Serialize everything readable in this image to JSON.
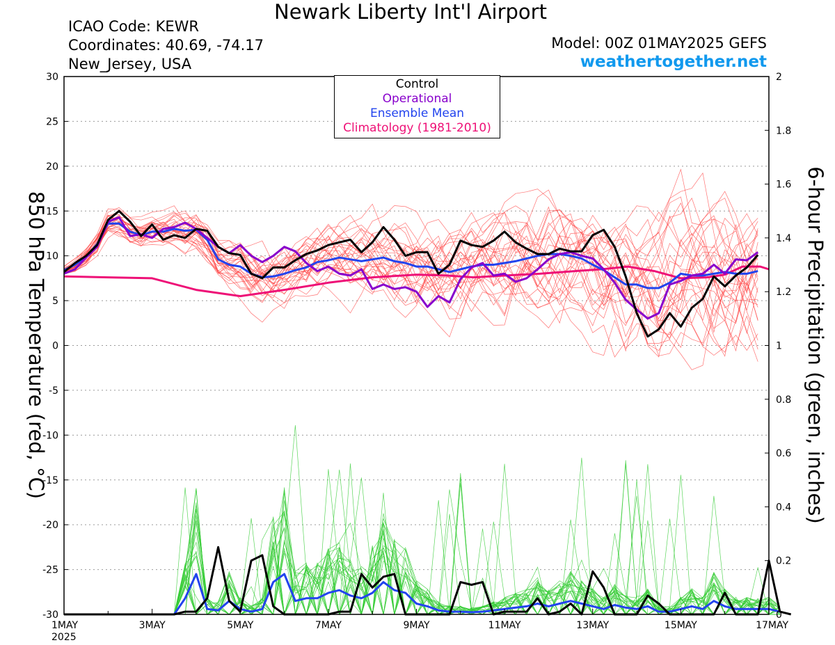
{
  "header": {
    "title": "Newark Liberty Int'l Airport",
    "icao": "ICAO Code: KEWR",
    "coordinates": "Coordinates: 40.69, -74.17",
    "location": "New_Jersey, USA",
    "model": "Model: 00Z 01MAY2025 GEFS",
    "site": "weathertogether.net"
  },
  "colors": {
    "control": "#000000",
    "operational": "#8800cc",
    "ensemble_mean": "#2244ee",
    "climatology": "#ee1177",
    "members_temperature": "#ff4444",
    "members_precipitation": "#33cc33",
    "site": "#1199ee"
  },
  "chart_data": {
    "type": "line",
    "xlabel": "",
    "ylabel": "850 hPa Temperature (red, °C)",
    "y2label": "6-hour Precipitation (green, inches)",
    "x_unit": "days after 1 May 2025 00Z (6-hourly)",
    "xlim": [
      0,
      16
    ],
    "ylim": [
      -30,
      30
    ],
    "y2lim": [
      0,
      2
    ],
    "x_ticks": [
      "1MAY",
      "3MAY",
      "5MAY",
      "7MAY",
      "9MAY",
      "11MAY",
      "13MAY",
      "15MAY",
      "17MAY"
    ],
    "x_tick_sublabel": "2025",
    "y_ticks": [
      30,
      25,
      20,
      15,
      10,
      5,
      0,
      -5,
      -10,
      -15,
      -20,
      -25,
      -30
    ],
    "y2_ticks": [
      "0",
      "0.2",
      "0.4",
      "0.6",
      "0.8",
      "1",
      "1.2",
      "1.4",
      "1.6",
      "1.8",
      "2"
    ],
    "grid": true,
    "legend_position": "top-center",
    "legend": [
      "Control",
      "Operational",
      "Ensemble Mean",
      "Climatology (1981-2010)"
    ],
    "temperature": {
      "control": [
        8.2,
        9.2,
        10.0,
        11.2,
        14.0,
        15.0,
        13.8,
        12.2,
        13.5,
        11.8,
        12.3,
        12.0,
        13.0,
        12.8,
        11.0,
        10.3,
        10.1,
        8.0,
        7.5,
        8.7,
        8.7,
        9.5,
        10.2,
        10.6,
        11.2,
        11.5,
        11.8,
        10.4,
        11.5,
        13.2,
        11.8,
        10.0,
        10.4,
        10.4,
        8.0,
        9.0,
        11.7,
        11.2,
        11.0,
        11.7,
        12.7,
        11.5,
        10.8,
        10.2,
        10.2,
        10.8,
        10.5,
        10.5,
        12.3,
        12.9,
        11.0,
        7.7,
        3.6,
        1.0,
        1.8,
        3.6,
        2.1,
        4.2,
        5.2,
        7.7,
        6.6,
        7.8,
        8.7,
        10.1
      ],
      "operational": [
        8.0,
        8.5,
        9.8,
        11.0,
        13.8,
        14.3,
        12.2,
        12.4,
        12.0,
        13.0,
        13.2,
        13.7,
        13.0,
        12.0,
        11.0,
        10.3,
        11.2,
        10.0,
        9.3,
        10.0,
        11.0,
        10.5,
        9.2,
        8.3,
        8.8,
        8.0,
        7.8,
        8.5,
        6.3,
        6.8,
        6.3,
        6.5,
        6.0,
        4.3,
        5.5,
        4.8,
        7.4,
        8.7,
        9.2,
        7.8,
        8.0,
        7.1,
        7.5,
        8.5,
        9.6,
        10.2,
        10.4,
        10.0,
        9.7,
        8.5,
        7.0,
        5.1,
        4.0,
        3.0,
        3.6,
        6.8,
        7.2,
        7.8,
        8.0,
        9.0,
        8.0,
        9.6,
        9.5,
        10.4
      ],
      "ensemble_mean": [
        8.4,
        9.0,
        9.9,
        11.3,
        13.6,
        13.6,
        12.7,
        12.3,
        12.7,
        12.7,
        13.0,
        12.8,
        12.9,
        11.8,
        9.6,
        9.0,
        8.8,
        8.0,
        7.6,
        7.7,
        8.0,
        8.4,
        8.7,
        9.3,
        9.5,
        9.8,
        9.6,
        9.4,
        9.6,
        9.8,
        9.4,
        9.2,
        8.8,
        8.8,
        8.5,
        8.2,
        8.5,
        8.8,
        9.0,
        9.0,
        9.2,
        9.4,
        9.7,
        10.0,
        10.2,
        10.2,
        10.0,
        9.7,
        9.0,
        8.4,
        7.6,
        6.8,
        6.8,
        6.4,
        6.4,
        7.0,
        8.0,
        7.8,
        7.8,
        8.0,
        8.2,
        8.0,
        8.0,
        8.3
      ],
      "climatology": [
        7.7,
        7.6,
        7.5,
        6.2,
        5.5,
        6.2,
        7.0,
        7.6,
        7.9,
        7.8,
        7.6,
        7.8,
        8.0,
        8.3,
        8.5,
        8.8,
        8.3,
        7.5,
        7.6,
        7.9,
        8.8,
        8.8,
        8.5
      ],
      "climatology_x": [
        0,
        1,
        2,
        3,
        4,
        5,
        6,
        7,
        8,
        8.7,
        9.3,
        10,
        10.8,
        11.6,
        12.2,
        12.8,
        13.4,
        14,
        14.6,
        15,
        15.4,
        15.8,
        16
      ]
    },
    "precipitation": {
      "control": [
        0,
        0,
        0,
        0,
        0,
        0,
        0,
        0,
        0,
        0,
        0,
        0.01,
        0.01,
        0.06,
        0.25,
        0.05,
        0.01,
        0.2,
        0.22,
        0.03,
        0,
        0,
        0,
        0,
        0,
        0.01,
        0.01,
        0.15,
        0.1,
        0.14,
        0.15,
        0,
        0,
        0,
        0,
        0,
        0.12,
        0.11,
        0.12,
        0,
        0.01,
        0.01,
        0.01,
        0.06,
        0,
        0.01,
        0.04,
        0,
        0.16,
        0.1,
        0,
        0,
        0,
        0.07,
        0.04,
        0,
        0,
        0,
        0,
        0,
        0.08,
        0,
        0,
        0,
        0.2,
        0.01,
        0
      ],
      "ensemble_mean": [
        0,
        0,
        0,
        0,
        0,
        0,
        0,
        0,
        0,
        0,
        0,
        0.06,
        0.15,
        0.02,
        0.015,
        0.05,
        0.02,
        0.01,
        0.02,
        0.12,
        0.15,
        0.05,
        0.06,
        0.06,
        0.08,
        0.09,
        0.07,
        0.06,
        0.08,
        0.12,
        0.09,
        0.08,
        0.04,
        0.03,
        0.015,
        0.01,
        0.01,
        0.008,
        0.01,
        0.015,
        0.02,
        0.025,
        0.03,
        0.04,
        0.03,
        0.04,
        0.05,
        0.04,
        0.03,
        0.02,
        0.035,
        0.025,
        0.02,
        0.03,
        0.01,
        0.01,
        0.02,
        0.03,
        0.02,
        0.05,
        0.03,
        0.02,
        0.02,
        0.02,
        0.02,
        0.01
      ],
      "x_index_unit": "step of 0.25 day"
    }
  }
}
